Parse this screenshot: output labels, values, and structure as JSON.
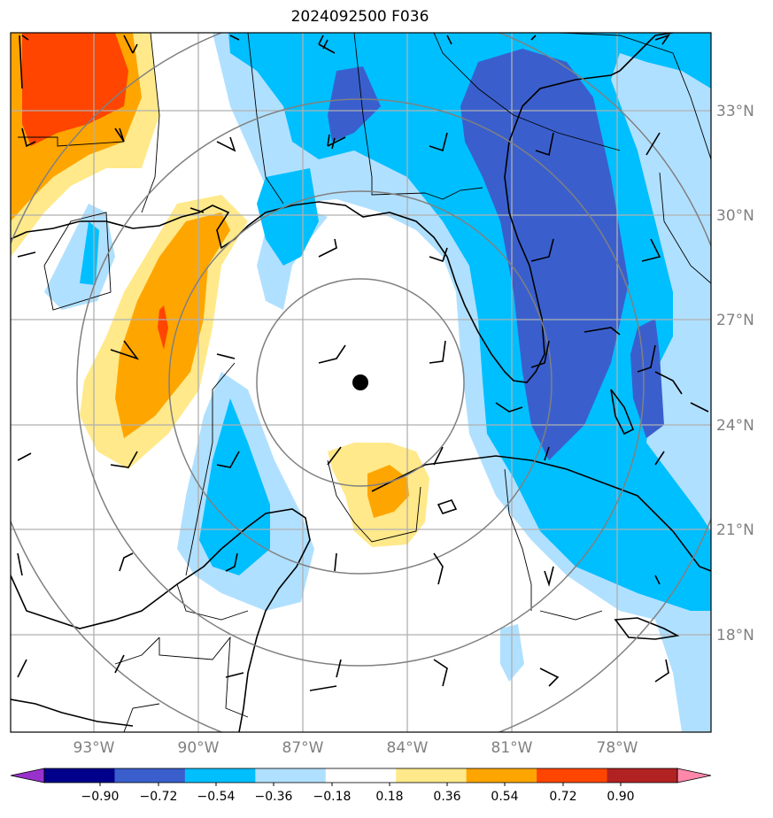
{
  "title": "2024092500 F036",
  "lat_labels": [
    "33°N",
    "30°N",
    "27°N",
    "24°N",
    "21°N",
    "18°N"
  ],
  "lon_labels": [
    "93°W",
    "90°W",
    "87°W",
    "84°W",
    "81°W",
    "78°W"
  ],
  "colorbar": {
    "levels": [
      "−0.90",
      "−0.72",
      "−0.54",
      "−0.36",
      "−0.18",
      "0.18",
      "0.36",
      "0.54",
      "0.72",
      "0.90"
    ],
    "colors": [
      "#9932cc",
      "#00008b",
      "#3a5fcd",
      "#00bfff",
      "#b0e0ff",
      "#ffffff",
      "#ffe98a",
      "#ffa500",
      "#ff4500",
      "#b22222",
      "#ff88aa"
    ]
  },
  "map": {
    "center_marker": "storm-center-dot",
    "range_rings": 4,
    "wind_barbs": "wind-barb-icons"
  }
}
